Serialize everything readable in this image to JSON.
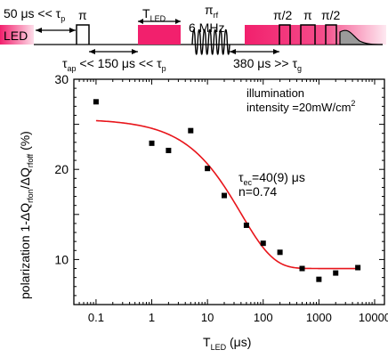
{
  "pulse_sequence": {
    "led_label": "LED",
    "timing_top_left": "50 μs << τ",
    "timing_top_left_sub": "p",
    "pi_label": "π",
    "t_led_main": "T",
    "t_led_sub": "LED",
    "rf_label_main": "π",
    "rf_label_sub": "rf",
    "rf_freq": "6 MHz",
    "half_pi_1": "π/2",
    "pi_2": "π",
    "half_pi_2": "π/2",
    "tau_ap_main": "τ",
    "tau_ap_sub": "ap",
    "tau_ap_rest": " << 150 μs << τ",
    "tau_ap_rest_sub": "p",
    "delay_right": "380 μs >> τ",
    "delay_right_sub": "g",
    "pink_color": "#f2206d",
    "pink_fade_color": "#f7a0c0"
  },
  "annotations": {
    "illumination_line1": "illumination",
    "illumination_line2": "intensity =20mW/cm",
    "illumination_sup": "2",
    "tau_main": "τ",
    "tau_sub": "ec",
    "tau_value": "=40(9) μs",
    "n_value": "n=0.74"
  },
  "chart_data": {
    "type": "scatter",
    "xlabel": "T",
    "xlabel_sub": "LED",
    "xlabel_unit": " (μs)",
    "ylabel_parts": [
      "polarization 1-ΔQ",
      "rfon",
      "/ΔQ",
      "rfoff",
      " (%)"
    ],
    "x_scale": "log",
    "xlim": [
      0.04,
      15000
    ],
    "ylim": [
      5,
      30
    ],
    "x_ticks": [
      0.1,
      1,
      10,
      100,
      1000,
      10000
    ],
    "x_tick_labels": [
      "0.1",
      "1",
      "10",
      "100",
      "1000",
      "10000"
    ],
    "y_ticks": [
      10,
      20,
      30
    ],
    "y_tick_labels": [
      "10",
      "20",
      "30"
    ],
    "grid": false,
    "points": {
      "x": [
        0.1,
        1,
        2,
        5,
        10,
        20,
        50,
        100,
        200,
        500,
        1000,
        2000,
        5000
      ],
      "y": [
        27.5,
        22.9,
        22.1,
        24.3,
        20.1,
        17.1,
        13.8,
        11.8,
        10.8,
        9.0,
        7.8,
        8.5,
        9.1
      ],
      "color": "#000000"
    },
    "fit": {
      "type": "stretched-exponential",
      "y0": 9.0,
      "amplitude": 16.6,
      "tau": 40,
      "n": 0.74,
      "x_range": [
        0.1,
        5000
      ],
      "color": "#e8151b"
    }
  }
}
